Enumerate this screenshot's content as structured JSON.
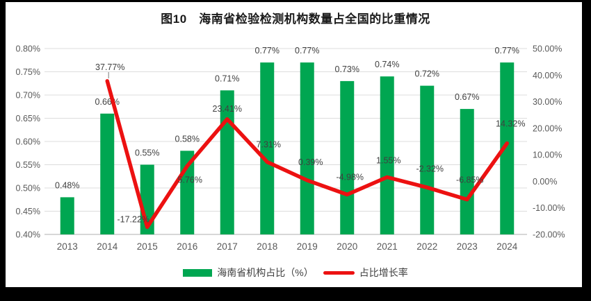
{
  "colors": {
    "bar": "#00A651",
    "line": "#EC1111",
    "data_label": "#404040",
    "tick_label": "#595959",
    "grid": "#DCDCDC",
    "axis": "#BFBFBF",
    "leader": "#A6A6A6",
    "frame": "#000000",
    "background": "#FFFFFF"
  },
  "chart_data": {
    "type": "bar+line",
    "title": "图10　海南省检验检测机构数量占全国的比重情况",
    "categories": [
      "2013",
      "2014",
      "2015",
      "2016",
      "2017",
      "2018",
      "2019",
      "2020",
      "2021",
      "2022",
      "2023",
      "2024"
    ],
    "series": [
      {
        "name": "海南省机构占比（%）",
        "type": "bar",
        "axis": "left",
        "values": [
          0.48,
          0.66,
          0.55,
          0.58,
          0.71,
          0.77,
          0.77,
          0.73,
          0.74,
          0.72,
          0.67,
          0.77
        ],
        "labels": [
          "0.48%",
          "0.66%",
          "0.55%",
          "0.58%",
          "0.71%",
          "0.77%",
          "0.77%",
          "0.73%",
          "0.74%",
          "0.72%",
          "0.67%",
          "0.77%"
        ]
      },
      {
        "name": "占比增长率",
        "type": "line",
        "axis": "right",
        "values": [
          null,
          37.77,
          -17.22,
          5.76,
          23.41,
          7.31,
          0.39,
          -4.98,
          1.55,
          -2.32,
          -6.85,
          14.32
        ],
        "labels": [
          null,
          "37.77%",
          "-17.22%",
          "5.76%",
          "23.41%",
          "7.31%",
          "0.39%",
          "-4.98%",
          "1.55%",
          "-2.32%",
          "-6.85%",
          "14.32%"
        ]
      }
    ],
    "left_axis": {
      "min": 0.4,
      "max": 0.8,
      "step": 0.05,
      "ticks": [
        "0.80%",
        "0.75%",
        "0.70%",
        "0.65%",
        "0.60%",
        "0.55%",
        "0.50%",
        "0.45%",
        "0.40%"
      ]
    },
    "right_axis": {
      "min": -20,
      "max": 50,
      "step": 10,
      "ticks": [
        "50.00%",
        "40.00%",
        "30.00%",
        "20.00%",
        "10.00%",
        "0.00%",
        "-10.00%",
        "-20.00%"
      ]
    },
    "grid": true,
    "legend_position": "bottom"
  },
  "legend": {
    "items": [
      {
        "label": "海南省机构占比（%）",
        "marker": "bar-swatch"
      },
      {
        "label": "占比增长率",
        "marker": "line-swatch"
      }
    ]
  }
}
